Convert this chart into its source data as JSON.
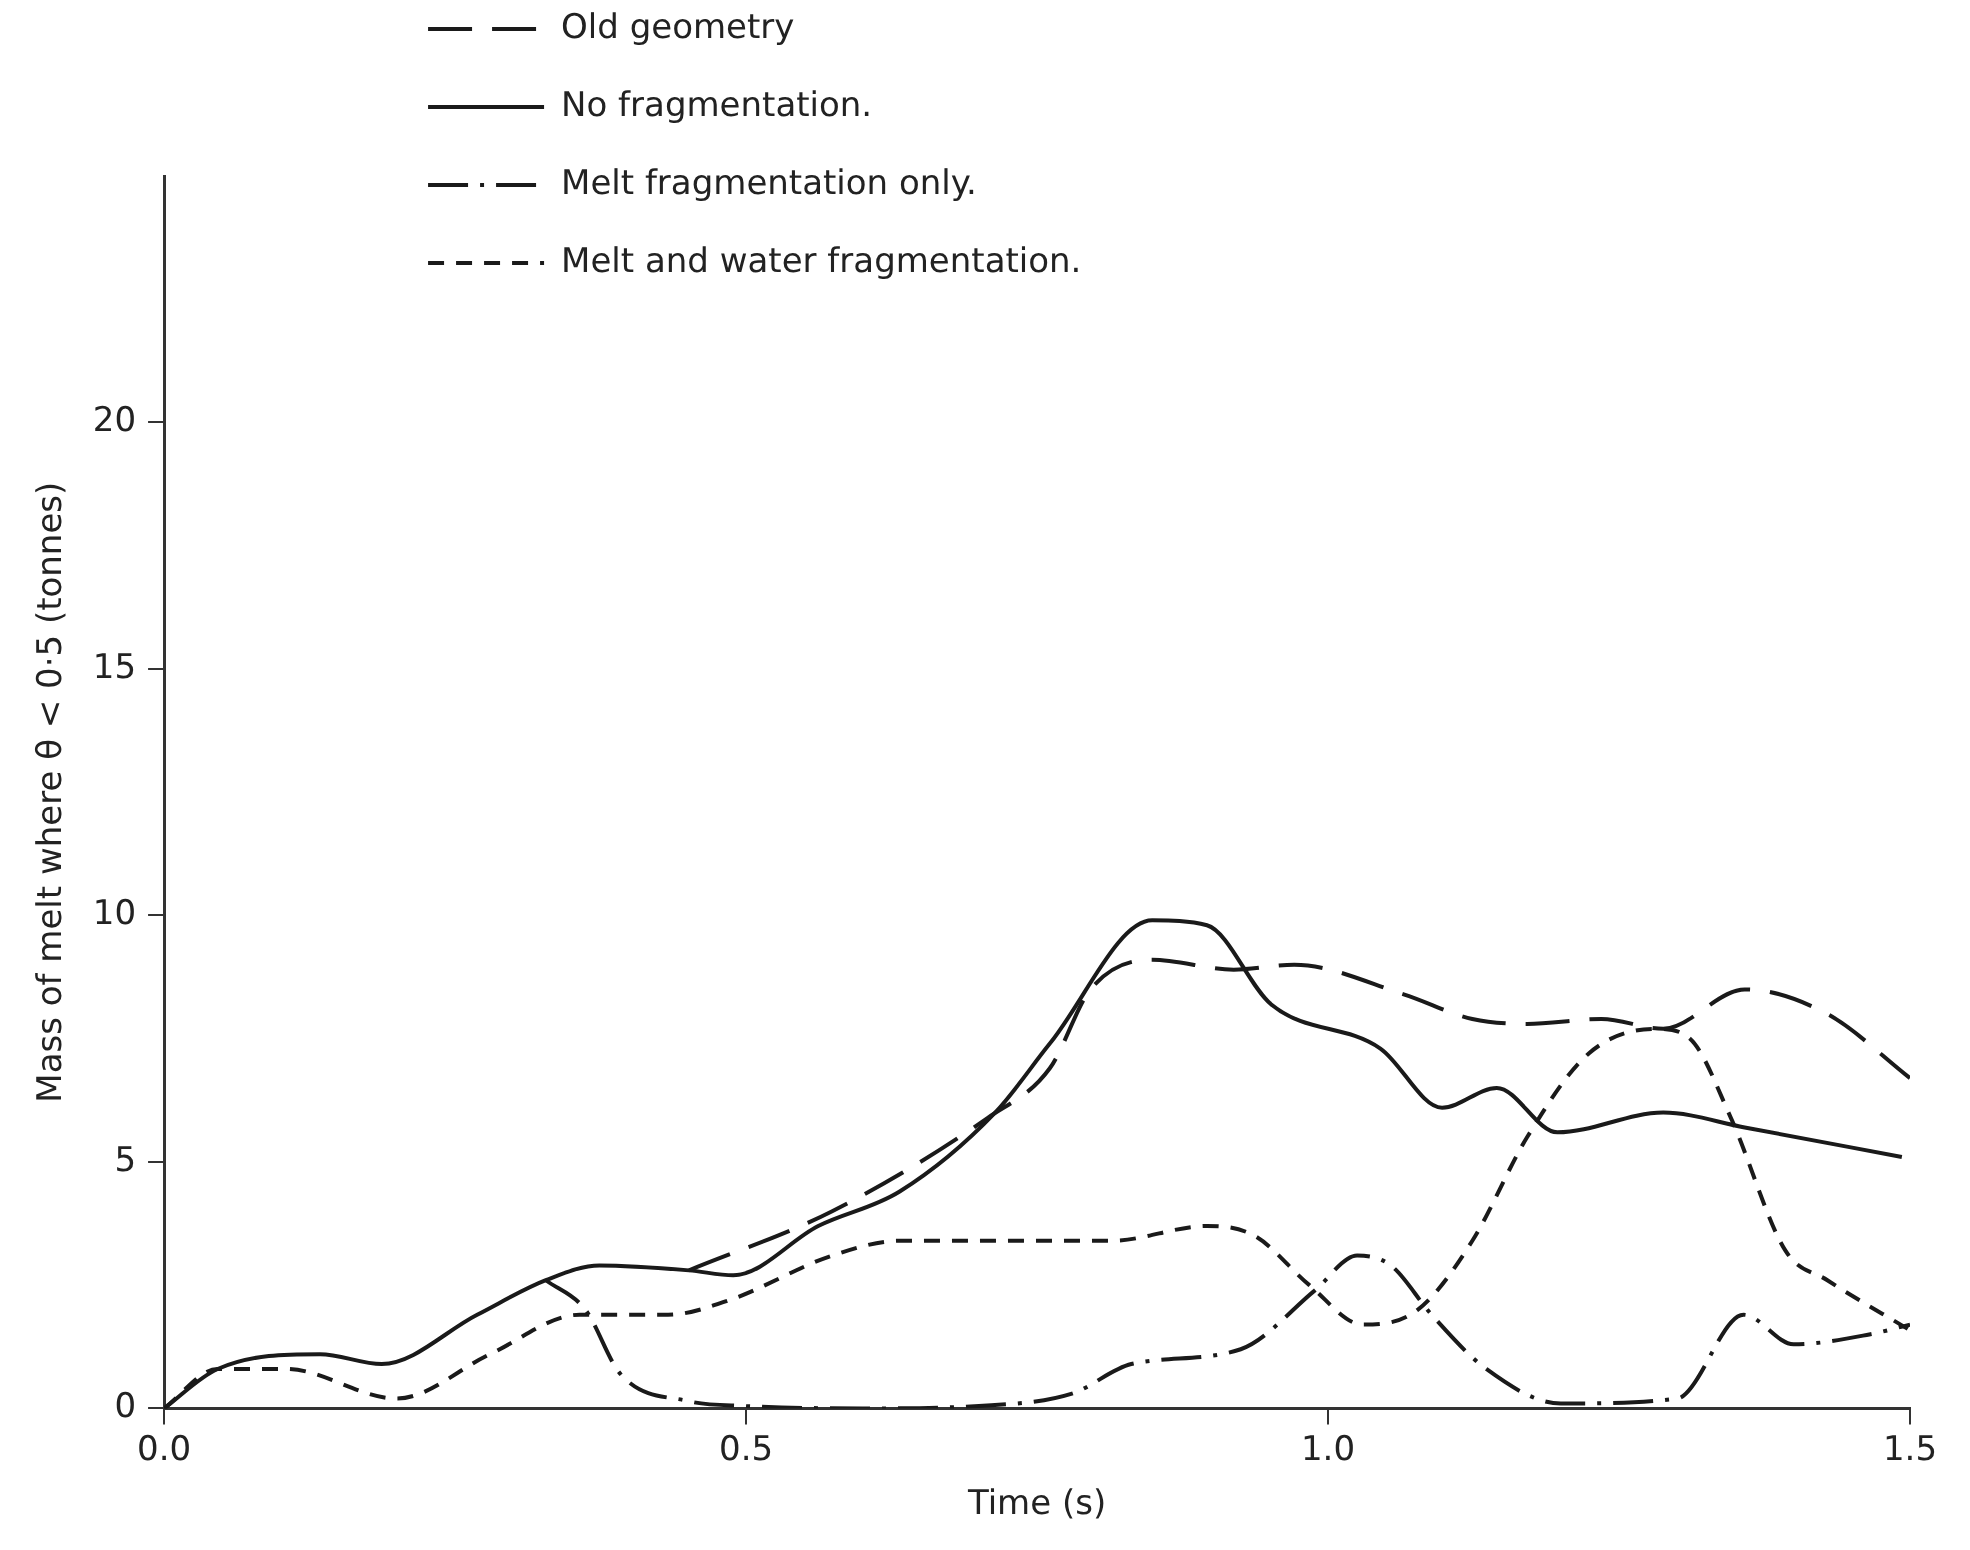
{
  "chart_data": {
    "type": "line",
    "xlabel": "Time (s)",
    "ylabel": "Mass of melt where θ < 0·5 (tonnes)",
    "xlim": [
      0,
      1.5
    ],
    "xticks": [
      {
        "value": 0,
        "label": "0.0"
      },
      {
        "value": 0.5,
        "label": "0.5"
      },
      {
        "value": 1,
        "label": "1.0"
      },
      {
        "value": 1.5,
        "label": "1.5"
      }
    ],
    "ylim": [
      0,
      25
    ],
    "yticks": [
      0,
      5,
      10,
      15,
      20
    ],
    "legend": "top",
    "marker": "none",
    "series": [
      {
        "name": "Old geometry",
        "color": "#1a1a1a",
        "line_style": "longdash",
        "x": [
          0.451,
          0.574,
          0.708,
          0.761,
          0.796,
          0.849,
          0.919,
          0.971,
          1.065,
          1.124,
          1.171,
          1.235,
          1.288,
          1.358,
          1.429,
          1.5
        ],
        "values": [
          2.8,
          4.0,
          5.9,
          6.9,
          8.5,
          9.1,
          8.9,
          9.0,
          8.4,
          7.9,
          7.8,
          7.9,
          7.7,
          8.5,
          8.0,
          6.7
        ]
      },
      {
        "name": "No fragmentation.",
        "color": "#1a1a1a",
        "line_style": "solid",
        "x": [
          0,
          0.046,
          0.134,
          0.187,
          0.269,
          0.328,
          0.374,
          0.451,
          0.489,
          0.562,
          0.632,
          0.714,
          0.761,
          0.849,
          0.896,
          0.951,
          1.045,
          1.098,
          1.145,
          1.197,
          1.288,
          1.358,
          1.493
        ],
        "values": [
          0,
          0.8,
          1.1,
          0.9,
          1.9,
          2.6,
          2.9,
          2.8,
          2.7,
          3.7,
          4.4,
          6.0,
          7.4,
          9.9,
          9.8,
          8.2,
          7.3,
          6.1,
          6.5,
          5.6,
          6.0,
          5.7,
          5.1
        ]
      },
      {
        "name": "Melt fragmentation only.",
        "color": "#1a1a1a",
        "line_style": "dashdot",
        "x": [
          0.328,
          0.362,
          0.392,
          0.45,
          0.5,
          0.6,
          0.7,
          0.78,
          0.831,
          0.925,
          0.989,
          1.025,
          1.054,
          1.089,
          1.136,
          1.2,
          1.3,
          1.357,
          1.4,
          1.465,
          1.5
        ],
        "values": [
          2.6,
          2.0,
          0.7,
          0.15,
          0.05,
          0,
          0.05,
          0.3,
          0.9,
          1.2,
          2.4,
          3.1,
          2.9,
          1.9,
          0.8,
          0.1,
          0.2,
          1.9,
          1.3,
          1.5,
          1.7
        ]
      },
      {
        "name": "Melt and water fragmentation.",
        "color": "#1a1a1a",
        "line_style": "dashed",
        "x": [
          0,
          0.046,
          0.105,
          0.2,
          0.28,
          0.357,
          0.433,
          0.486,
          0.574,
          0.632,
          0.726,
          0.814,
          0.896,
          0.937,
          0.984,
          1.03,
          1.077,
          1.124,
          1.171,
          1.224,
          1.282,
          1.311,
          1.346,
          1.393,
          1.429,
          1.499
        ],
        "values": [
          0,
          0.8,
          0.8,
          0.2,
          1.1,
          1.9,
          1.9,
          2.2,
          3.1,
          3.4,
          3.4,
          3.4,
          3.7,
          3.5,
          2.5,
          1.7,
          2.0,
          3.4,
          5.5,
          7.2,
          7.7,
          7.5,
          5.9,
          3.2,
          2.6,
          1.6
        ]
      }
    ]
  }
}
